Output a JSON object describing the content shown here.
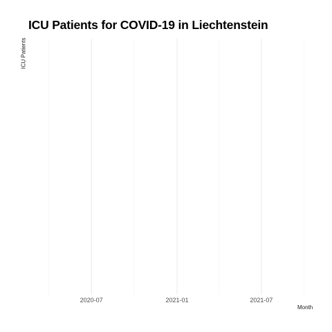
{
  "chart_data": {
    "type": "line",
    "title": "ICU Patients for COVID-19 in Liechtenstein",
    "xlabel": "Month",
    "ylabel": "ICU Patients",
    "x_tick_labels": [
      "2020-07",
      "2021-01",
      "2021-07"
    ],
    "x_major_ticks": [
      "2020-07-01",
      "2021-01-01",
      "2021-07-01"
    ],
    "x_minor_ticks": [
      "2020-04-01",
      "2020-10-01",
      "2021-04-01",
      "2021-10-01"
    ],
    "xlim": [
      "2020-03-01",
      "2021-10-31"
    ],
    "series": [],
    "grid": true,
    "legend": "none"
  }
}
